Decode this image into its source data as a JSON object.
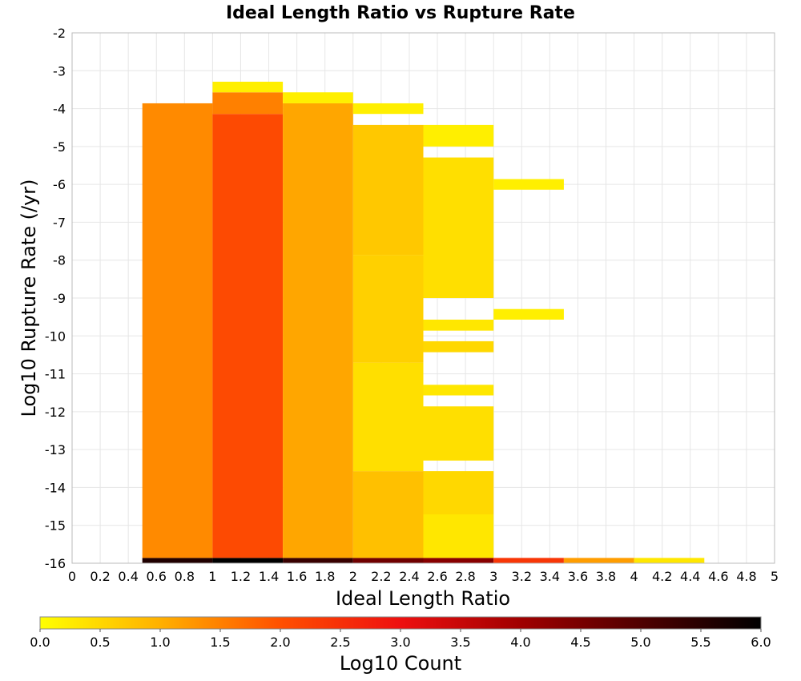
{
  "chart_data": {
    "type": "heatmap",
    "title": "Ideal Length Ratio vs Rupture Rate",
    "xlabel": "Ideal Length Ratio",
    "ylabel": "Log10 Rupture Rate (/yr)",
    "xlim": [
      0,
      5
    ],
    "ylim": [
      -16,
      -2
    ],
    "x_ticks": [
      "0",
      "0.2",
      "0.4",
      "0.6",
      "0.8",
      "1",
      "1.2",
      "1.4",
      "1.6",
      "1.8",
      "2",
      "2.2",
      "2.4",
      "2.6",
      "2.8",
      "3",
      "3.2",
      "3.4",
      "3.6",
      "3.8",
      "4",
      "4.2",
      "4.4",
      "4.6",
      "4.8",
      "5"
    ],
    "y_ticks": [
      "-2",
      "-3",
      "-4",
      "-5",
      "-6",
      "-7",
      "-8",
      "-9",
      "-10",
      "-11",
      "-12",
      "-13",
      "-14",
      "-15",
      "-16"
    ],
    "grid": true,
    "colorbar": {
      "label": "Log10 Count",
      "range": [
        0.0,
        6.0
      ],
      "ticks": [
        "0.0",
        "0.5",
        "1.0",
        "1.5",
        "2.0",
        "2.5",
        "3.0",
        "3.5",
        "4.0",
        "4.5",
        "5.0",
        "5.5",
        "6.0"
      ],
      "colormap": [
        "#ffff00",
        "#ffb000",
        "#ff5000",
        "#ee1010",
        "#a00000",
        "#500000",
        "#000000"
      ]
    },
    "bin_width_x": 0.5,
    "bin_height_y": 0.2857,
    "columns": [
      {
        "x_start": 0.5,
        "x_end": 1.0,
        "bins": [
          {
            "y_start": -16.0,
            "y_end": -15.86,
            "value": 5.6
          },
          {
            "y_start": -15.86,
            "y_end": -3.86,
            "value": 1.4
          }
        ]
      },
      {
        "x_start": 1.0,
        "x_end": 1.5,
        "bins": [
          {
            "y_start": -16.0,
            "y_end": -15.86,
            "value": 6.0
          },
          {
            "y_start": -15.86,
            "y_end": -4.14,
            "value": 2.1
          },
          {
            "y_start": -4.14,
            "y_end": -3.57,
            "value": 1.5
          },
          {
            "y_start": -3.57,
            "y_end": -3.29,
            "value": 0.2
          }
        ]
      },
      {
        "x_start": 1.5,
        "x_end": 2.0,
        "bins": [
          {
            "y_start": -16.0,
            "y_end": -15.86,
            "value": 5.3
          },
          {
            "y_start": -15.86,
            "y_end": -3.86,
            "value": 1.1
          },
          {
            "y_start": -3.86,
            "y_end": -3.57,
            "value": 0.2
          }
        ]
      },
      {
        "x_start": 2.0,
        "x_end": 2.5,
        "bins": [
          {
            "y_start": -16.0,
            "y_end": -15.86,
            "value": 4.6
          },
          {
            "y_start": -15.86,
            "y_end": -13.57,
            "value": 0.8
          },
          {
            "y_start": -13.57,
            "y_end": -10.71,
            "value": 0.4
          },
          {
            "y_start": -10.71,
            "y_end": -7.86,
            "value": 0.6
          },
          {
            "y_start": -7.86,
            "y_end": -4.43,
            "value": 0.7
          },
          {
            "y_start": -4.14,
            "y_end": -3.86,
            "value": 0.2
          }
        ]
      },
      {
        "x_start": 2.5,
        "x_end": 3.0,
        "bins": [
          {
            "y_start": -16.0,
            "y_end": -15.86,
            "value": 4.3
          },
          {
            "y_start": -15.86,
            "y_end": -14.71,
            "value": 0.3
          },
          {
            "y_start": -14.71,
            "y_end": -13.57,
            "value": 0.5
          },
          {
            "y_start": -13.29,
            "y_end": -11.86,
            "value": 0.4
          },
          {
            "y_start": -11.57,
            "y_end": -11.29,
            "value": 0.3
          },
          {
            "y_start": -10.43,
            "y_end": -10.14,
            "value": 0.5
          },
          {
            "y_start": -9.86,
            "y_end": -9.57,
            "value": 0.3
          },
          {
            "y_start": -9.0,
            "y_end": -5.29,
            "value": 0.4
          },
          {
            "y_start": -5.0,
            "y_end": -4.43,
            "value": 0.2
          }
        ]
      },
      {
        "x_start": 3.0,
        "x_end": 3.5,
        "bins": [
          {
            "y_start": -16.0,
            "y_end": -15.86,
            "value": 2.4
          },
          {
            "y_start": -9.57,
            "y_end": -9.29,
            "value": 0.2
          },
          {
            "y_start": -6.14,
            "y_end": -5.86,
            "value": 0.2
          }
        ]
      },
      {
        "x_start": 3.5,
        "x_end": 4.0,
        "bins": [
          {
            "y_start": -16.0,
            "y_end": -15.86,
            "value": 1.2
          }
        ]
      },
      {
        "x_start": 4.0,
        "x_end": 4.5,
        "bins": [
          {
            "y_start": -16.0,
            "y_end": -15.86,
            "value": 0.3
          }
        ]
      }
    ]
  }
}
